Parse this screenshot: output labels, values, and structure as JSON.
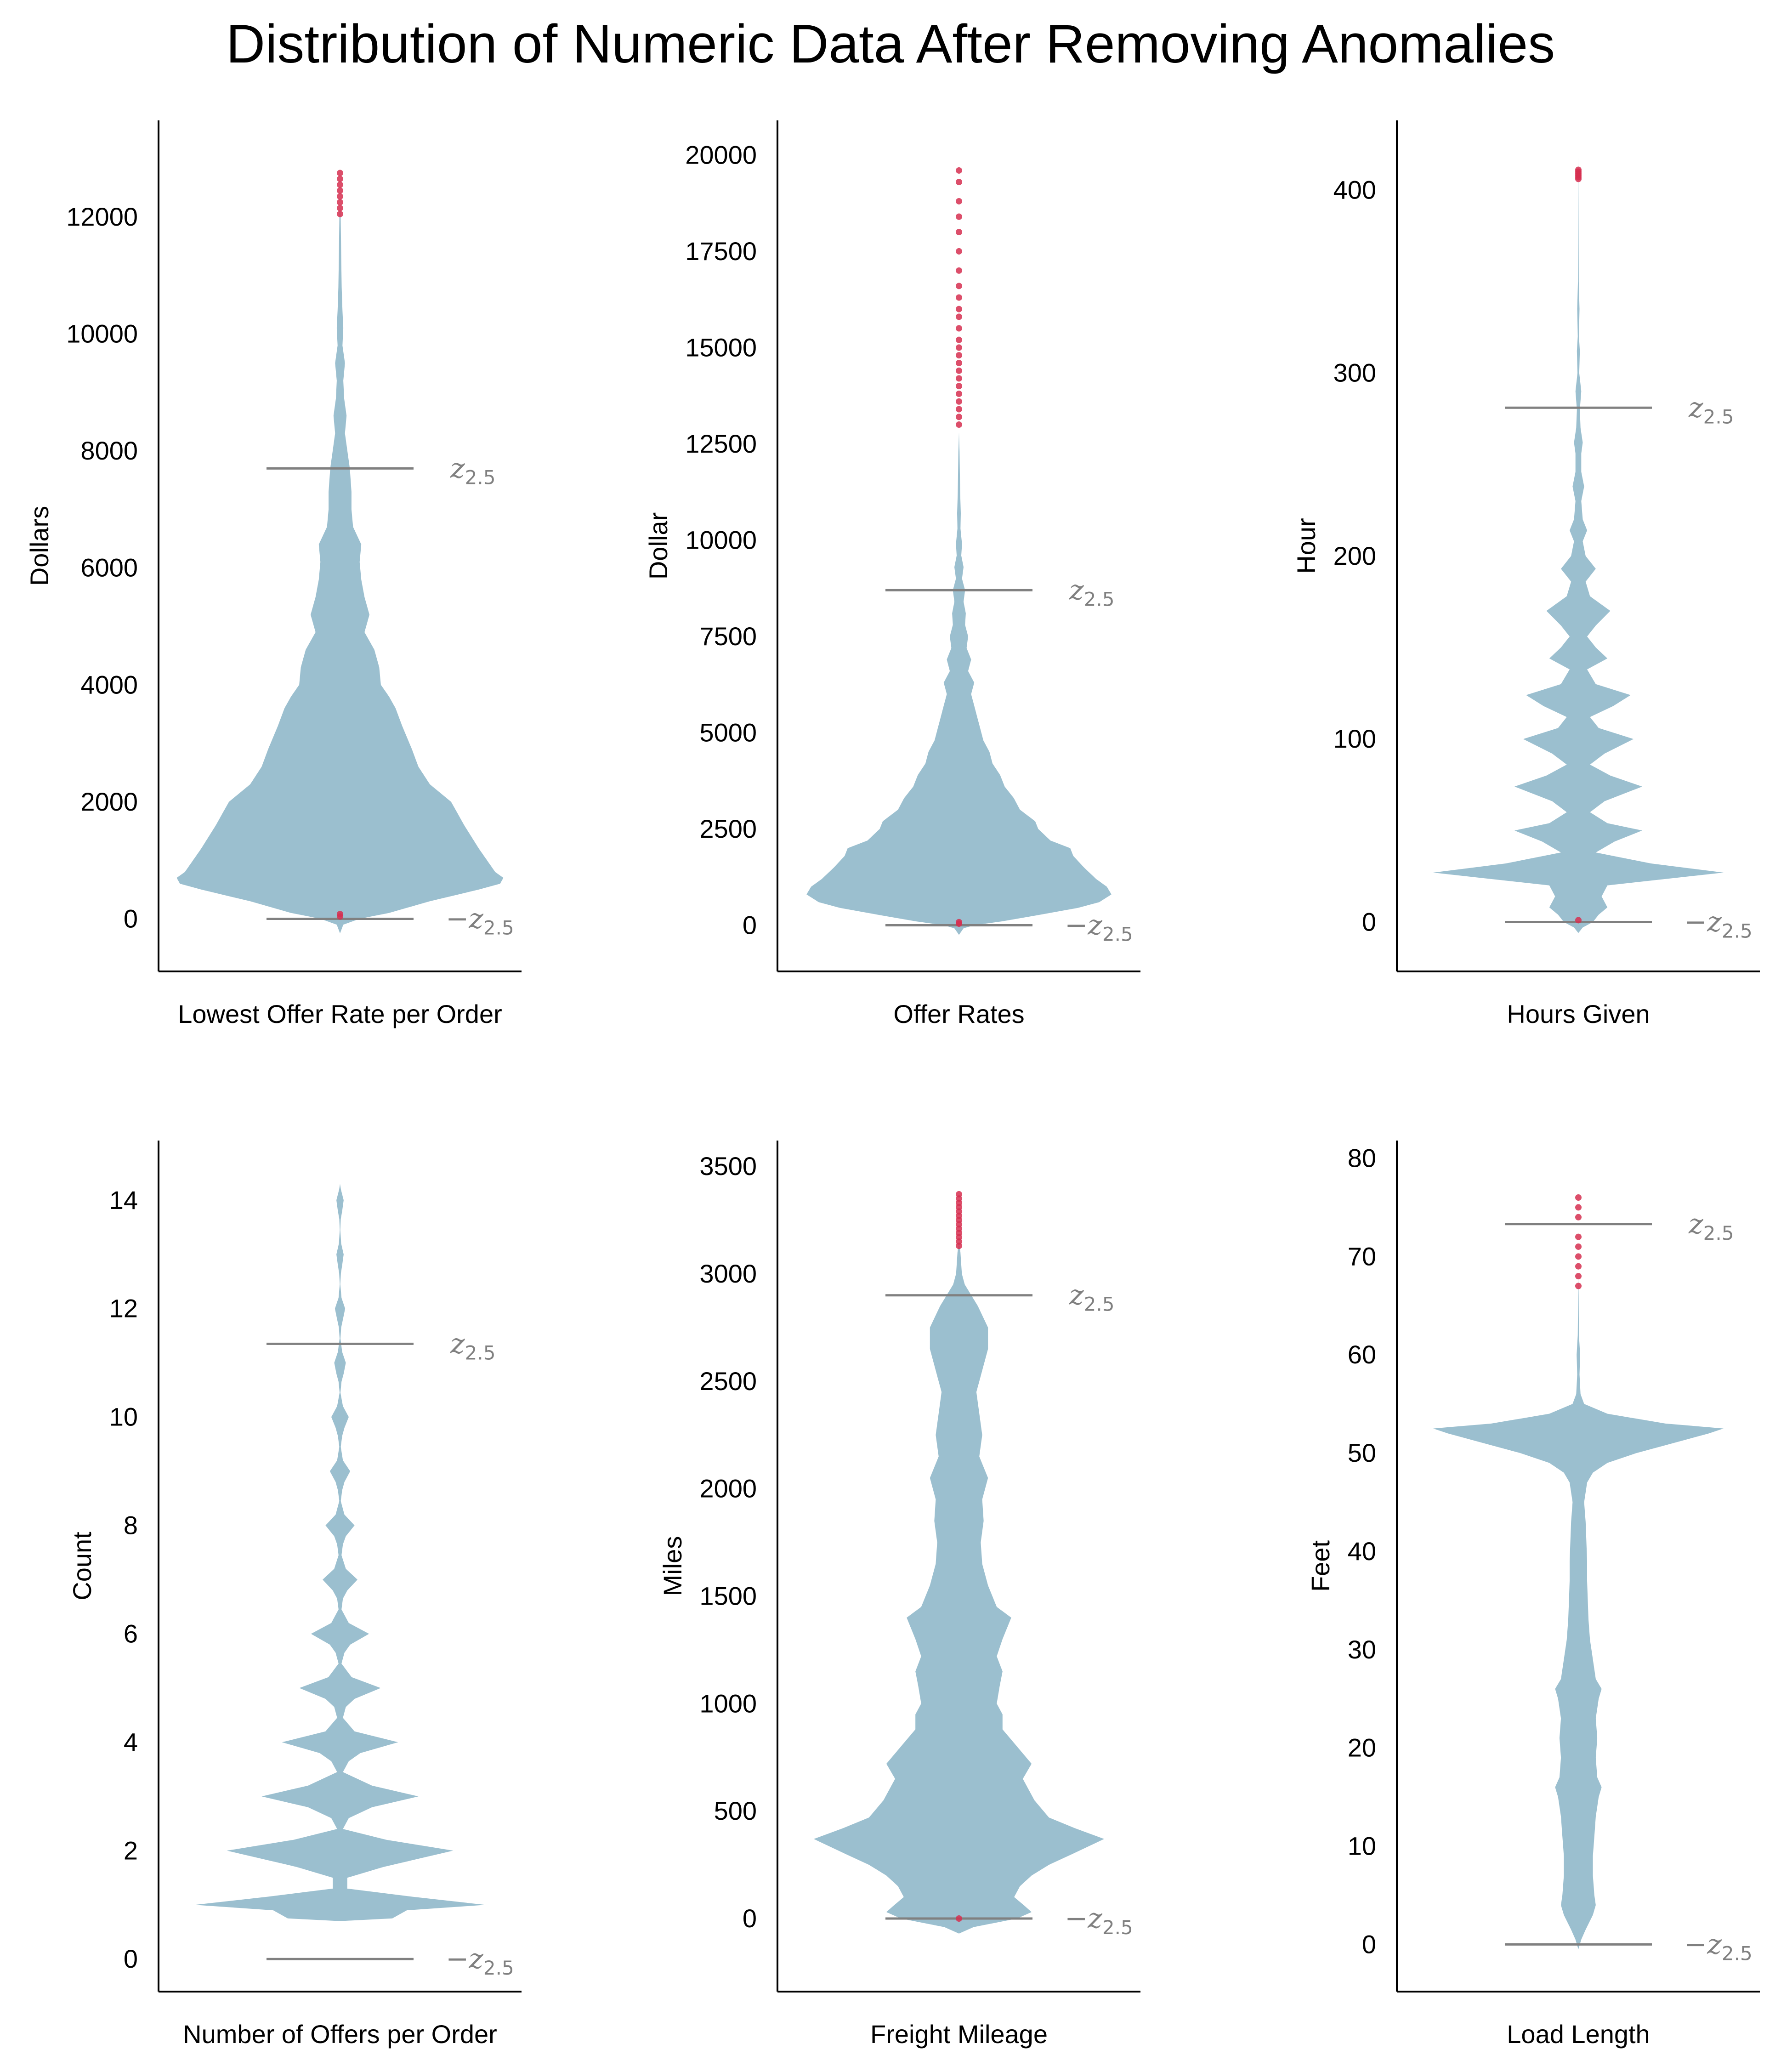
{
  "title": "Distribution of Numeric Data After Removing Anomalies",
  "colors": {
    "violin": "#9bbfcf",
    "outlier": "#d62f50",
    "threshold": "#808080",
    "axis": "#000000"
  },
  "threshold_labels": {
    "upper_base": "z",
    "lower_base": "−z",
    "subscript": "2.5"
  },
  "chart_data": [
    {
      "type": "violin",
      "xlabel": "Lowest Offer Rate per Order",
      "ylabel": "Dollars",
      "ylim": [
        -900,
        13650
      ],
      "yticks": [
        0,
        2000,
        4000,
        6000,
        8000,
        10000,
        12000
      ],
      "upper_threshold": 7700,
      "lower_threshold": 0,
      "width_max": 0.9,
      "profile": [
        [
          -250,
          0
        ],
        [
          -100,
          0.02
        ],
        [
          0,
          0.12
        ],
        [
          100,
          0.3
        ],
        [
          300,
          0.55
        ],
        [
          500,
          0.85
        ],
        [
          600,
          0.98
        ],
        [
          700,
          1.0
        ],
        [
          800,
          0.95
        ],
        [
          1200,
          0.85
        ],
        [
          1600,
          0.76
        ],
        [
          1800,
          0.72
        ],
        [
          2000,
          0.68
        ],
        [
          2300,
          0.55
        ],
        [
          2600,
          0.48
        ],
        [
          2900,
          0.44
        ],
        [
          3300,
          0.38
        ],
        [
          3600,
          0.34
        ],
        [
          3800,
          0.3
        ],
        [
          4000,
          0.25
        ],
        [
          4300,
          0.24
        ],
        [
          4600,
          0.21
        ],
        [
          4900,
          0.15
        ],
        [
          5200,
          0.18
        ],
        [
          5500,
          0.15
        ],
        [
          5800,
          0.13
        ],
        [
          6100,
          0.12
        ],
        [
          6400,
          0.13
        ],
        [
          6700,
          0.08
        ],
        [
          7000,
          0.07
        ],
        [
          7300,
          0.07
        ],
        [
          7700,
          0.06
        ],
        [
          8000,
          0.045
        ],
        [
          8300,
          0.03
        ],
        [
          8600,
          0.04
        ],
        [
          8900,
          0.025
        ],
        [
          9200,
          0.02
        ],
        [
          9500,
          0.03
        ],
        [
          9800,
          0.015
        ],
        [
          10100,
          0.02
        ],
        [
          10400,
          0.015
        ],
        [
          10800,
          0.01
        ],
        [
          11200,
          0.008
        ],
        [
          11600,
          0.006
        ],
        [
          12000,
          0.004
        ],
        [
          12200,
          0
        ]
      ],
      "outliers": [
        12050,
        12150,
        12250,
        12350,
        12450,
        12550,
        12650,
        12750,
        40,
        80
      ]
    },
    {
      "type": "violin",
      "xlabel": "Offer Rates",
      "ylabel": "Dollar",
      "ylim": [
        -1200,
        20900
      ],
      "yticks": [
        0,
        2500,
        5000,
        7500,
        10000,
        12500,
        15000,
        17500,
        20000
      ],
      "upper_threshold": 8700,
      "lower_threshold": 0,
      "width_max": 0.84,
      "profile": [
        [
          -250,
          0
        ],
        [
          -80,
          0.03
        ],
        [
          0,
          0.1
        ],
        [
          100,
          0.28
        ],
        [
          250,
          0.5
        ],
        [
          450,
          0.78
        ],
        [
          600,
          0.92
        ],
        [
          800,
          1.0
        ],
        [
          1000,
          0.97
        ],
        [
          1200,
          0.9
        ],
        [
          1500,
          0.82
        ],
        [
          1800,
          0.75
        ],
        [
          2000,
          0.73
        ],
        [
          2200,
          0.6
        ],
        [
          2500,
          0.52
        ],
        [
          2700,
          0.5
        ],
        [
          3000,
          0.4
        ],
        [
          3300,
          0.36
        ],
        [
          3600,
          0.3
        ],
        [
          3900,
          0.27
        ],
        [
          4200,
          0.22
        ],
        [
          4500,
          0.2
        ],
        [
          4800,
          0.16
        ],
        [
          5100,
          0.14
        ],
        [
          5400,
          0.12
        ],
        [
          5700,
          0.1
        ],
        [
          6000,
          0.08
        ],
        [
          6300,
          0.1
        ],
        [
          6600,
          0.06
        ],
        [
          6900,
          0.08
        ],
        [
          7200,
          0.05
        ],
        [
          7500,
          0.06
        ],
        [
          7800,
          0.04
        ],
        [
          8100,
          0.045
        ],
        [
          8400,
          0.03
        ],
        [
          8700,
          0.04
        ],
        [
          9000,
          0.02
        ],
        [
          9300,
          0.03
        ],
        [
          9600,
          0.015
        ],
        [
          9900,
          0.02
        ],
        [
          10300,
          0.01
        ],
        [
          10700,
          0.012
        ],
        [
          11200,
          0.008
        ],
        [
          11700,
          0.006
        ],
        [
          12300,
          0.004
        ],
        [
          12800,
          0
        ]
      ],
      "outliers": [
        13000,
        13200,
        13400,
        13600,
        13800,
        14000,
        14200,
        14400,
        14600,
        14800,
        15000,
        15200,
        15500,
        15800,
        16000,
        16300,
        16600,
        17000,
        17500,
        18000,
        18400,
        18800,
        19300,
        19600,
        40,
        80
      ]
    },
    {
      "type": "violin",
      "xlabel": "Hours Given",
      "ylabel": "Hour",
      "ylim": [
        -27,
        438
      ],
      "yticks": [
        0,
        100,
        200,
        300,
        400
      ],
      "upper_threshold": 281,
      "lower_threshold": 0,
      "width_max": 0.8,
      "profile": [
        [
          -6,
          0
        ],
        [
          -3,
          0.03
        ],
        [
          0,
          0.1
        ],
        [
          4,
          0.14
        ],
        [
          8,
          0.2
        ],
        [
          14,
          0.16
        ],
        [
          20,
          0.2
        ],
        [
          27,
          1.0
        ],
        [
          32,
          0.5
        ],
        [
          38,
          0.12
        ],
        [
          44,
          0.25
        ],
        [
          50,
          0.44
        ],
        [
          54,
          0.2
        ],
        [
          60,
          0.08
        ],
        [
          66,
          0.18
        ],
        [
          74,
          0.44
        ],
        [
          80,
          0.22
        ],
        [
          86,
          0.08
        ],
        [
          92,
          0.18
        ],
        [
          100,
          0.38
        ],
        [
          106,
          0.14
        ],
        [
          112,
          0.08
        ],
        [
          118,
          0.24
        ],
        [
          124,
          0.36
        ],
        [
          130,
          0.12
        ],
        [
          138,
          0.06
        ],
        [
          144,
          0.2
        ],
        [
          150,
          0.12
        ],
        [
          156,
          0.06
        ],
        [
          162,
          0.12
        ],
        [
          170,
          0.22
        ],
        [
          178,
          0.08
        ],
        [
          186,
          0.05
        ],
        [
          193,
          0.12
        ],
        [
          200,
          0.05
        ],
        [
          208,
          0.03
        ],
        [
          214,
          0.06
        ],
        [
          220,
          0.03
        ],
        [
          230,
          0.02
        ],
        [
          238,
          0.04
        ],
        [
          246,
          0.02
        ],
        [
          256,
          0.02
        ],
        [
          262,
          0.03
        ],
        [
          270,
          0.015
        ],
        [
          280,
          0.01
        ],
        [
          290,
          0.02
        ],
        [
          300,
          0.006
        ],
        [
          312,
          0.01
        ],
        [
          320,
          0.004
        ],
        [
          335,
          0.008
        ],
        [
          350,
          0.003
        ],
        [
          370,
          0.002
        ],
        [
          395,
          0.001
        ],
        [
          418,
          0
        ]
      ],
      "outliers": [
        406,
        407,
        408,
        409,
        410,
        411,
        1
      ]
    },
    {
      "type": "violin",
      "xlabel": "Number of Offers per Order",
      "ylabel": "Count",
      "ylim": [
        -0.6,
        15.1
      ],
      "yticks": [
        0,
        2,
        4,
        6,
        8,
        10,
        12,
        14
      ],
      "upper_threshold": 11.35,
      "lower_threshold": 0,
      "width_max": 0.8,
      "profile": [
        [
          0.7,
          0
        ],
        [
          0.75,
          0.36
        ],
        [
          0.9,
          0.46
        ],
        [
          1.0,
          1.0
        ],
        [
          1.15,
          0.5
        ],
        [
          1.3,
          0.05
        ],
        [
          1.5,
          0.05
        ],
        [
          1.7,
          0.3
        ],
        [
          2.0,
          0.78
        ],
        [
          2.2,
          0.32
        ],
        [
          2.4,
          0.02
        ],
        [
          2.6,
          0.06
        ],
        [
          2.8,
          0.22
        ],
        [
          3.0,
          0.54
        ],
        [
          3.2,
          0.22
        ],
        [
          3.45,
          0.02
        ],
        [
          3.65,
          0.06
        ],
        [
          3.8,
          0.14
        ],
        [
          4.0,
          0.4
        ],
        [
          4.2,
          0.1
        ],
        [
          4.45,
          0.02
        ],
        [
          4.65,
          0.04
        ],
        [
          4.8,
          0.1
        ],
        [
          5.0,
          0.28
        ],
        [
          5.2,
          0.08
        ],
        [
          5.45,
          0.01
        ],
        [
          5.65,
          0.03
        ],
        [
          5.8,
          0.07
        ],
        [
          6.0,
          0.2
        ],
        [
          6.2,
          0.06
        ],
        [
          6.45,
          0.01
        ],
        [
          6.65,
          0.02
        ],
        [
          6.8,
          0.05
        ],
        [
          7.0,
          0.12
        ],
        [
          7.2,
          0.04
        ],
        [
          7.45,
          0.01
        ],
        [
          7.65,
          0.02
        ],
        [
          7.8,
          0.04
        ],
        [
          8.0,
          0.1
        ],
        [
          8.2,
          0.03
        ],
        [
          8.45,
          0.005
        ],
        [
          8.65,
          0.015
        ],
        [
          8.8,
          0.03
        ],
        [
          9.0,
          0.07
        ],
        [
          9.2,
          0.02
        ],
        [
          9.45,
          0.005
        ],
        [
          9.65,
          0.015
        ],
        [
          9.8,
          0.03
        ],
        [
          10.0,
          0.06
        ],
        [
          10.2,
          0.02
        ],
        [
          10.45,
          0.003
        ],
        [
          10.65,
          0.01
        ],
        [
          10.8,
          0.025
        ],
        [
          11.0,
          0.04
        ],
        [
          11.2,
          0.015
        ],
        [
          11.45,
          0.003
        ],
        [
          11.65,
          0.008
        ],
        [
          11.8,
          0.02
        ],
        [
          12.0,
          0.035
        ],
        [
          12.2,
          0.01
        ],
        [
          12.45,
          0.002
        ],
        [
          12.65,
          0.006
        ],
        [
          12.8,
          0.015
        ],
        [
          13.0,
          0.025
        ],
        [
          13.2,
          0.008
        ],
        [
          13.45,
          0.002
        ],
        [
          13.65,
          0.005
        ],
        [
          13.8,
          0.015
        ],
        [
          14.0,
          0.025
        ],
        [
          14.2,
          0.006
        ],
        [
          14.3,
          0
        ]
      ],
      "outliers": []
    },
    {
      "type": "violin",
      "xlabel": "Freight Mileage",
      "ylabel": "Miles",
      "ylim": [
        -340,
        3620
      ],
      "yticks": [
        0,
        500,
        1000,
        1500,
        2000,
        2500,
        3000,
        3500
      ],
      "upper_threshold": 2900,
      "lower_threshold": 0,
      "width_max": 0.8,
      "profile": [
        [
          -70,
          0
        ],
        [
          -40,
          0.1
        ],
        [
          0,
          0.4
        ],
        [
          30,
          0.5
        ],
        [
          60,
          0.45
        ],
        [
          100,
          0.38
        ],
        [
          150,
          0.42
        ],
        [
          200,
          0.5
        ],
        [
          250,
          0.62
        ],
        [
          300,
          0.78
        ],
        [
          370,
          1.0
        ],
        [
          420,
          0.8
        ],
        [
          470,
          0.62
        ],
        [
          550,
          0.52
        ],
        [
          650,
          0.44
        ],
        [
          720,
          0.5
        ],
        [
          800,
          0.4
        ],
        [
          880,
          0.3
        ],
        [
          950,
          0.3
        ],
        [
          1000,
          0.26
        ],
        [
          1080,
          0.28
        ],
        [
          1150,
          0.3
        ],
        [
          1220,
          0.26
        ],
        [
          1300,
          0.3
        ],
        [
          1350,
          0.33
        ],
        [
          1400,
          0.36
        ],
        [
          1450,
          0.26
        ],
        [
          1550,
          0.2
        ],
        [
          1650,
          0.16
        ],
        [
          1750,
          0.15
        ],
        [
          1850,
          0.17
        ],
        [
          1950,
          0.16
        ],
        [
          2050,
          0.2
        ],
        [
          2150,
          0.14
        ],
        [
          2250,
          0.16
        ],
        [
          2350,
          0.14
        ],
        [
          2450,
          0.12
        ],
        [
          2550,
          0.16
        ],
        [
          2650,
          0.2
        ],
        [
          2750,
          0.2
        ],
        [
          2850,
          0.13
        ],
        [
          2950,
          0.04
        ],
        [
          3000,
          0.02
        ],
        [
          3100,
          0.01
        ],
        [
          3150,
          0
        ]
      ],
      "outliers": [
        3130,
        3150,
        3170,
        3190,
        3210,
        3230,
        3250,
        3270,
        3290,
        3310,
        3330,
        3350,
        3370,
        0
      ]
    },
    {
      "type": "violin",
      "xlabel": "Load Length",
      "ylabel": "Feet",
      "ylim": [
        -4.8,
        81.8
      ],
      "yticks": [
        0,
        10,
        20,
        30,
        40,
        50,
        60,
        70,
        80
      ],
      "upper_threshold": 73.3,
      "lower_threshold": 0,
      "width_max": 0.8,
      "profile": [
        [
          -0.5,
          0
        ],
        [
          0.5,
          0.02
        ],
        [
          1.5,
          0.05
        ],
        [
          3,
          0.1
        ],
        [
          4,
          0.12
        ],
        [
          5,
          0.11
        ],
        [
          7,
          0.1
        ],
        [
          9,
          0.1
        ],
        [
          11,
          0.11
        ],
        [
          13,
          0.12
        ],
        [
          15,
          0.14
        ],
        [
          16,
          0.16
        ],
        [
          17,
          0.13
        ],
        [
          19,
          0.12
        ],
        [
          21,
          0.13
        ],
        [
          23,
          0.12
        ],
        [
          25,
          0.14
        ],
        [
          26,
          0.16
        ],
        [
          27,
          0.12
        ],
        [
          29,
          0.1
        ],
        [
          31,
          0.08
        ],
        [
          33,
          0.07
        ],
        [
          35,
          0.065
        ],
        [
          37,
          0.06
        ],
        [
          39,
          0.06
        ],
        [
          41,
          0.055
        ],
        [
          43,
          0.05
        ],
        [
          45,
          0.04
        ],
        [
          46,
          0.05
        ],
        [
          47,
          0.06
        ],
        [
          48,
          0.1
        ],
        [
          49,
          0.2
        ],
        [
          50,
          0.4
        ],
        [
          51,
          0.65
        ],
        [
          52,
          0.9
        ],
        [
          52.5,
          1.0
        ],
        [
          53,
          0.6
        ],
        [
          54,
          0.2
        ],
        [
          55,
          0.04
        ],
        [
          56,
          0.015
        ],
        [
          58,
          0.008
        ],
        [
          60,
          0.012
        ],
        [
          62,
          0.004
        ],
        [
          64,
          0.003
        ],
        [
          66,
          0.002
        ],
        [
          68,
          0
        ]
      ],
      "outliers": [
        67,
        68,
        69,
        70,
        71,
        72,
        74,
        75,
        76
      ]
    }
  ]
}
